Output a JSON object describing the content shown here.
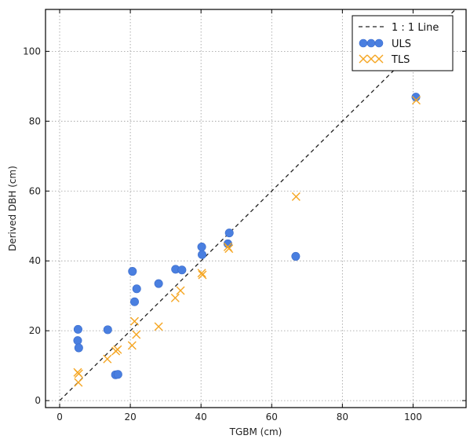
{
  "chart_data": {
    "type": "scatter",
    "title": "",
    "xlabel": "TGBM (cm)",
    "ylabel": "Derived DBH (cm)",
    "xlim": [
      -4,
      115
    ],
    "ylim": [
      -2,
      112
    ],
    "xticks": [
      0,
      20,
      40,
      60,
      80,
      100
    ],
    "yticks": [
      0,
      20,
      40,
      60,
      80,
      100
    ],
    "x_tick_labels": [
      "0",
      "20",
      "40",
      "60",
      "80",
      "100"
    ],
    "y_tick_labels": [
      "0",
      "20",
      "40",
      "60",
      "80",
      "100"
    ],
    "grid": true,
    "legend_position": "top-right",
    "reference_line": {
      "name": "1 : 1 Line",
      "x": [
        0,
        115
      ],
      "y": [
        0,
        115
      ],
      "color": "#222222",
      "style": "dashed"
    },
    "series": [
      {
        "name": "ULS",
        "marker": "circle",
        "color": "#4a7fe0",
        "points": [
          {
            "x": 5.2,
            "y": 20.4
          },
          {
            "x": 5.1,
            "y": 17.2
          },
          {
            "x": 5.4,
            "y": 15.1
          },
          {
            "x": 13.6,
            "y": 20.3
          },
          {
            "x": 15.8,
            "y": 7.4
          },
          {
            "x": 16.5,
            "y": 7.5
          },
          {
            "x": 20.6,
            "y": 37.0
          },
          {
            "x": 21.2,
            "y": 28.3
          },
          {
            "x": 21.8,
            "y": 32.0
          },
          {
            "x": 28.0,
            "y": 33.5
          },
          {
            "x": 32.8,
            "y": 37.6
          },
          {
            "x": 34.6,
            "y": 37.4
          },
          {
            "x": 40.2,
            "y": 44.0
          },
          {
            "x": 40.3,
            "y": 41.8
          },
          {
            "x": 47.6,
            "y": 44.9
          },
          {
            "x": 48.0,
            "y": 48.0
          },
          {
            "x": 66.8,
            "y": 41.3
          },
          {
            "x": 100.8,
            "y": 86.9
          }
        ]
      },
      {
        "name": "TLS",
        "marker": "x",
        "color": "#f5a623",
        "points": [
          {
            "x": 5.1,
            "y": 8.1
          },
          {
            "x": 5.4,
            "y": 7.7
          },
          {
            "x": 5.3,
            "y": 5.2
          },
          {
            "x": 13.5,
            "y": 11.9
          },
          {
            "x": 15.9,
            "y": 14.2
          },
          {
            "x": 16.4,
            "y": 14.6
          },
          {
            "x": 20.5,
            "y": 15.8
          },
          {
            "x": 21.2,
            "y": 22.7
          },
          {
            "x": 21.7,
            "y": 18.9
          },
          {
            "x": 28.0,
            "y": 21.2
          },
          {
            "x": 32.7,
            "y": 29.4
          },
          {
            "x": 34.2,
            "y": 31.5
          },
          {
            "x": 40.2,
            "y": 36.5
          },
          {
            "x": 40.4,
            "y": 36.0
          },
          {
            "x": 47.6,
            "y": 44.0
          },
          {
            "x": 47.9,
            "y": 43.5
          },
          {
            "x": 66.9,
            "y": 58.4
          },
          {
            "x": 100.9,
            "y": 86.0
          }
        ]
      }
    ]
  }
}
